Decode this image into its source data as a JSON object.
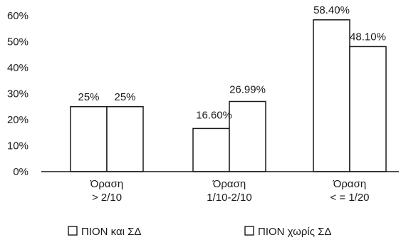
{
  "chart_data": {
    "type": "bar",
    "categories": [
      [
        "Όραση",
        "> 2/10"
      ],
      [
        "Όραση",
        "1/10-2/10"
      ],
      [
        "Όραση",
        "< = 1/20"
      ]
    ],
    "series": [
      {
        "name": "ΠΙΟΝ και ΣΔ",
        "values": [
          25,
          16.6,
          58.4
        ],
        "labels": [
          "25%",
          "16.60%",
          "58.40%"
        ]
      },
      {
        "name": "ΠΙΟΝ χωρίς ΣΔ",
        "values": [
          25,
          26.99,
          48.1
        ],
        "labels": [
          "25%",
          "26.99%",
          "48.10%"
        ]
      }
    ],
    "yticks": [
      0,
      10,
      20,
      30,
      40,
      50,
      60
    ],
    "ytick_labels": [
      "0%",
      "10%",
      "20%",
      "30%",
      "40%",
      "50%",
      "60%"
    ],
    "ylim": [
      0,
      60
    ],
    "grid": false,
    "legend_position": "bottom",
    "title": "",
    "xlabel": "",
    "ylabel": ""
  }
}
